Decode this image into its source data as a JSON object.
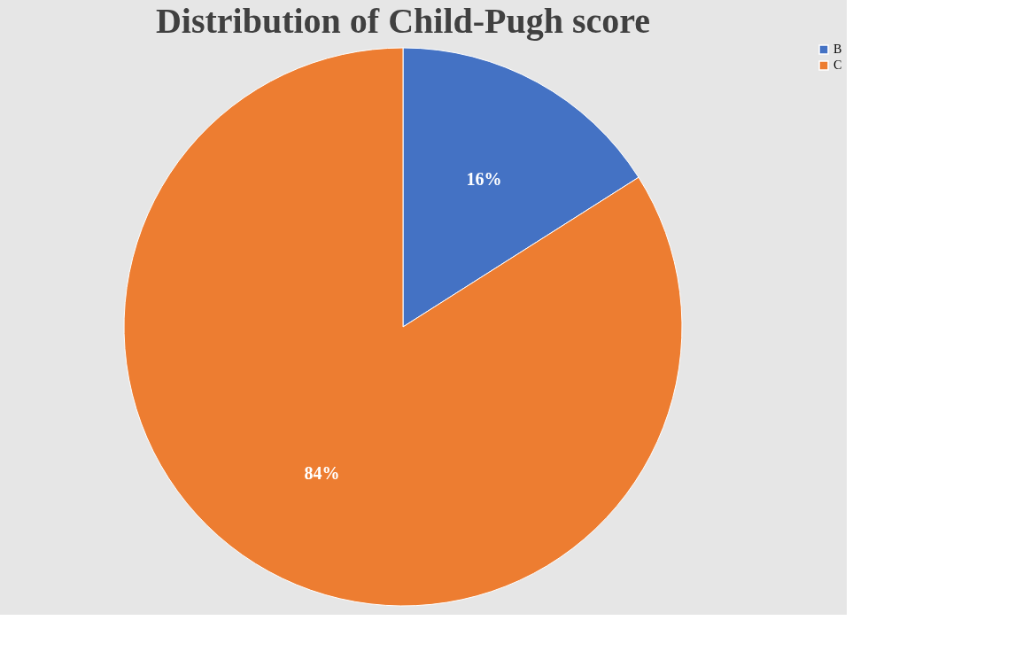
{
  "chart_data": {
    "type": "pie",
    "title": "Distribution of Child-Pugh score",
    "categories": [
      "B",
      "C"
    ],
    "values": [
      16,
      84
    ],
    "colors": [
      "#4472c4",
      "#ed7d31"
    ],
    "value_labels": [
      "16%",
      "84%"
    ],
    "legend": "right"
  }
}
